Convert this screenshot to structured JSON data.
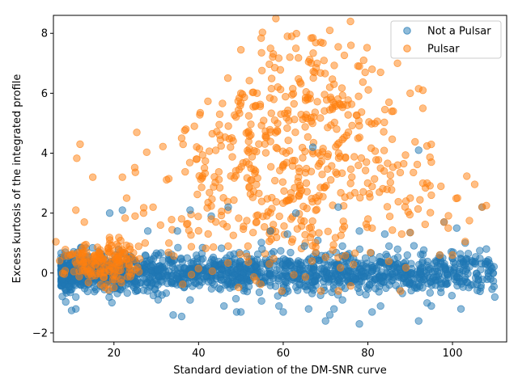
{
  "chart_data": {
    "type": "scatter",
    "xlabel": "Standard deviation of the DM-SNR curve",
    "ylabel": "Excess kurtosis of the integrated profile",
    "xlim": [
      5.7,
      112.8
    ],
    "ylim": [
      -2.3,
      8.6
    ],
    "xticks": [
      20,
      40,
      60,
      80,
      100
    ],
    "yticks": [
      -2,
      0,
      2,
      4,
      6,
      8
    ],
    "grid": false,
    "legend_position": "top-right",
    "series": [
      {
        "name": "Not a Pulsar",
        "color": "#1f77b4",
        "opacity": 0.5,
        "generated": {
          "seed": 12345,
          "count": 1500,
          "x_range": [
            7.5,
            110
          ],
          "x_skew": 1.6,
          "y_mean": 0.0,
          "y_sd": 0.32
        },
        "points": [
          [
            22,
            2.1
          ],
          [
            19,
            2.0
          ],
          [
            43,
            1.9
          ],
          [
            47,
            2.2
          ],
          [
            38,
            2.1
          ],
          [
            35,
            1.4
          ],
          [
            28,
            1.4
          ],
          [
            63,
            2.0
          ],
          [
            73,
            2.2
          ],
          [
            67,
            4.2
          ],
          [
            92,
            4.1
          ],
          [
            107,
            2.2
          ],
          [
            98,
            1.7
          ],
          [
            101,
            1.5
          ],
          [
            103,
            1.0
          ],
          [
            108,
            0.8
          ],
          [
            34,
            -1.4
          ],
          [
            36,
            -1.45
          ],
          [
            38,
            -0.9
          ],
          [
            46,
            -1.1
          ],
          [
            49,
            -1.3
          ],
          [
            50,
            -1.3
          ],
          [
            59,
            -1.1
          ],
          [
            60,
            -1.3
          ],
          [
            66,
            -1.2
          ],
          [
            70,
            -1.6
          ],
          [
            71,
            -1.4
          ],
          [
            72,
            -1.2
          ],
          [
            74,
            -0.9
          ],
          [
            78,
            -1.7
          ],
          [
            81,
            -1.3
          ],
          [
            83,
            -1.1
          ],
          [
            92,
            -1.6
          ],
          [
            94,
            -1.0
          ],
          [
            95,
            -1.1
          ],
          [
            102,
            -1.2
          ],
          [
            11,
            -1.2
          ],
          [
            10,
            -1.25
          ],
          [
            11,
            -0.8
          ],
          [
            74,
            0.9
          ],
          [
            78,
            1.4
          ],
          [
            84,
            1.3
          ],
          [
            90,
            1.35
          ],
          [
            97,
            0.6
          ],
          [
            100,
            0.5
          ],
          [
            96,
            0.4
          ],
          [
            110,
            -0.8
          ],
          [
            109,
            -0.2
          ],
          [
            85,
            0.9
          ],
          [
            55,
            0.8
          ],
          [
            65,
            0.9
          ],
          [
            104,
            0.2
          ],
          [
            106,
            -0.1
          ],
          [
            57,
            1.4
          ],
          [
            61,
            1.3
          ]
        ]
      },
      {
        "name": "Pulsar",
        "color": "#ff7f0e",
        "opacity": 0.5,
        "generated": {
          "seed": 67890,
          "count": 700,
          "clusters": [
            {
              "weight": 0.22,
              "x_mean": 18,
              "x_sd": 5,
              "y_mean": 0.4,
              "y_sd": 0.35
            },
            {
              "weight": 0.78,
              "x_mean": 63,
              "x_sd": 15,
              "y_mean": 3.2,
              "y_sd": 1.6
            }
          ]
        },
        "points": [
          [
            61,
            7.9
          ],
          [
            62,
            7.9
          ],
          [
            71,
            8.1
          ],
          [
            67,
            7.85
          ],
          [
            73,
            7.55
          ],
          [
            76,
            7.6
          ],
          [
            57,
            7.5
          ],
          [
            50,
            7.45
          ],
          [
            63,
            7.5
          ],
          [
            66,
            7.05
          ],
          [
            68,
            7.0
          ],
          [
            79,
            7.1
          ],
          [
            87,
            7.0
          ],
          [
            78,
            6.9
          ],
          [
            81,
            6.8
          ],
          [
            83,
            6.7
          ],
          [
            71,
            6.2
          ],
          [
            72,
            6.3
          ],
          [
            90,
            6.0
          ],
          [
            92,
            6.15
          ],
          [
            93,
            6.1
          ],
          [
            85,
            5.7
          ],
          [
            86,
            5.4
          ],
          [
            93,
            5.5
          ],
          [
            12,
            4.3
          ],
          [
            15,
            3.2
          ],
          [
            22,
            3.2
          ],
          [
            11,
            2.1
          ],
          [
            13,
            1.7
          ],
          [
            23,
            2.5
          ],
          [
            108,
            2.25
          ],
          [
            107,
            2.2
          ],
          [
            104,
            1.75
          ],
          [
            98,
            1.7
          ],
          [
            99,
            1.5
          ],
          [
            95,
            3.7
          ],
          [
            93,
            3.0
          ],
          [
            94,
            3.0
          ],
          [
            95,
            2.6
          ],
          [
            89,
            2.4
          ],
          [
            90,
            2.5
          ],
          [
            83,
            3.5
          ],
          [
            36,
            4.5
          ],
          [
            37,
            4.8
          ],
          [
            39,
            4.9
          ],
          [
            45,
            5.3
          ],
          [
            50,
            6.0
          ],
          [
            45,
            4.6
          ],
          [
            103,
            1.05
          ],
          [
            97,
            0.6
          ],
          [
            100,
            0.6
          ],
          [
            88,
            1.3
          ],
          [
            90,
            1.35
          ],
          [
            25,
            1.9
          ],
          [
            27,
            2.0
          ],
          [
            31,
            1.6
          ],
          [
            33,
            1.0
          ],
          [
            43,
            1.8
          ],
          [
            47,
            0.9
          ],
          [
            81,
            1.5
          ]
        ]
      }
    ]
  }
}
